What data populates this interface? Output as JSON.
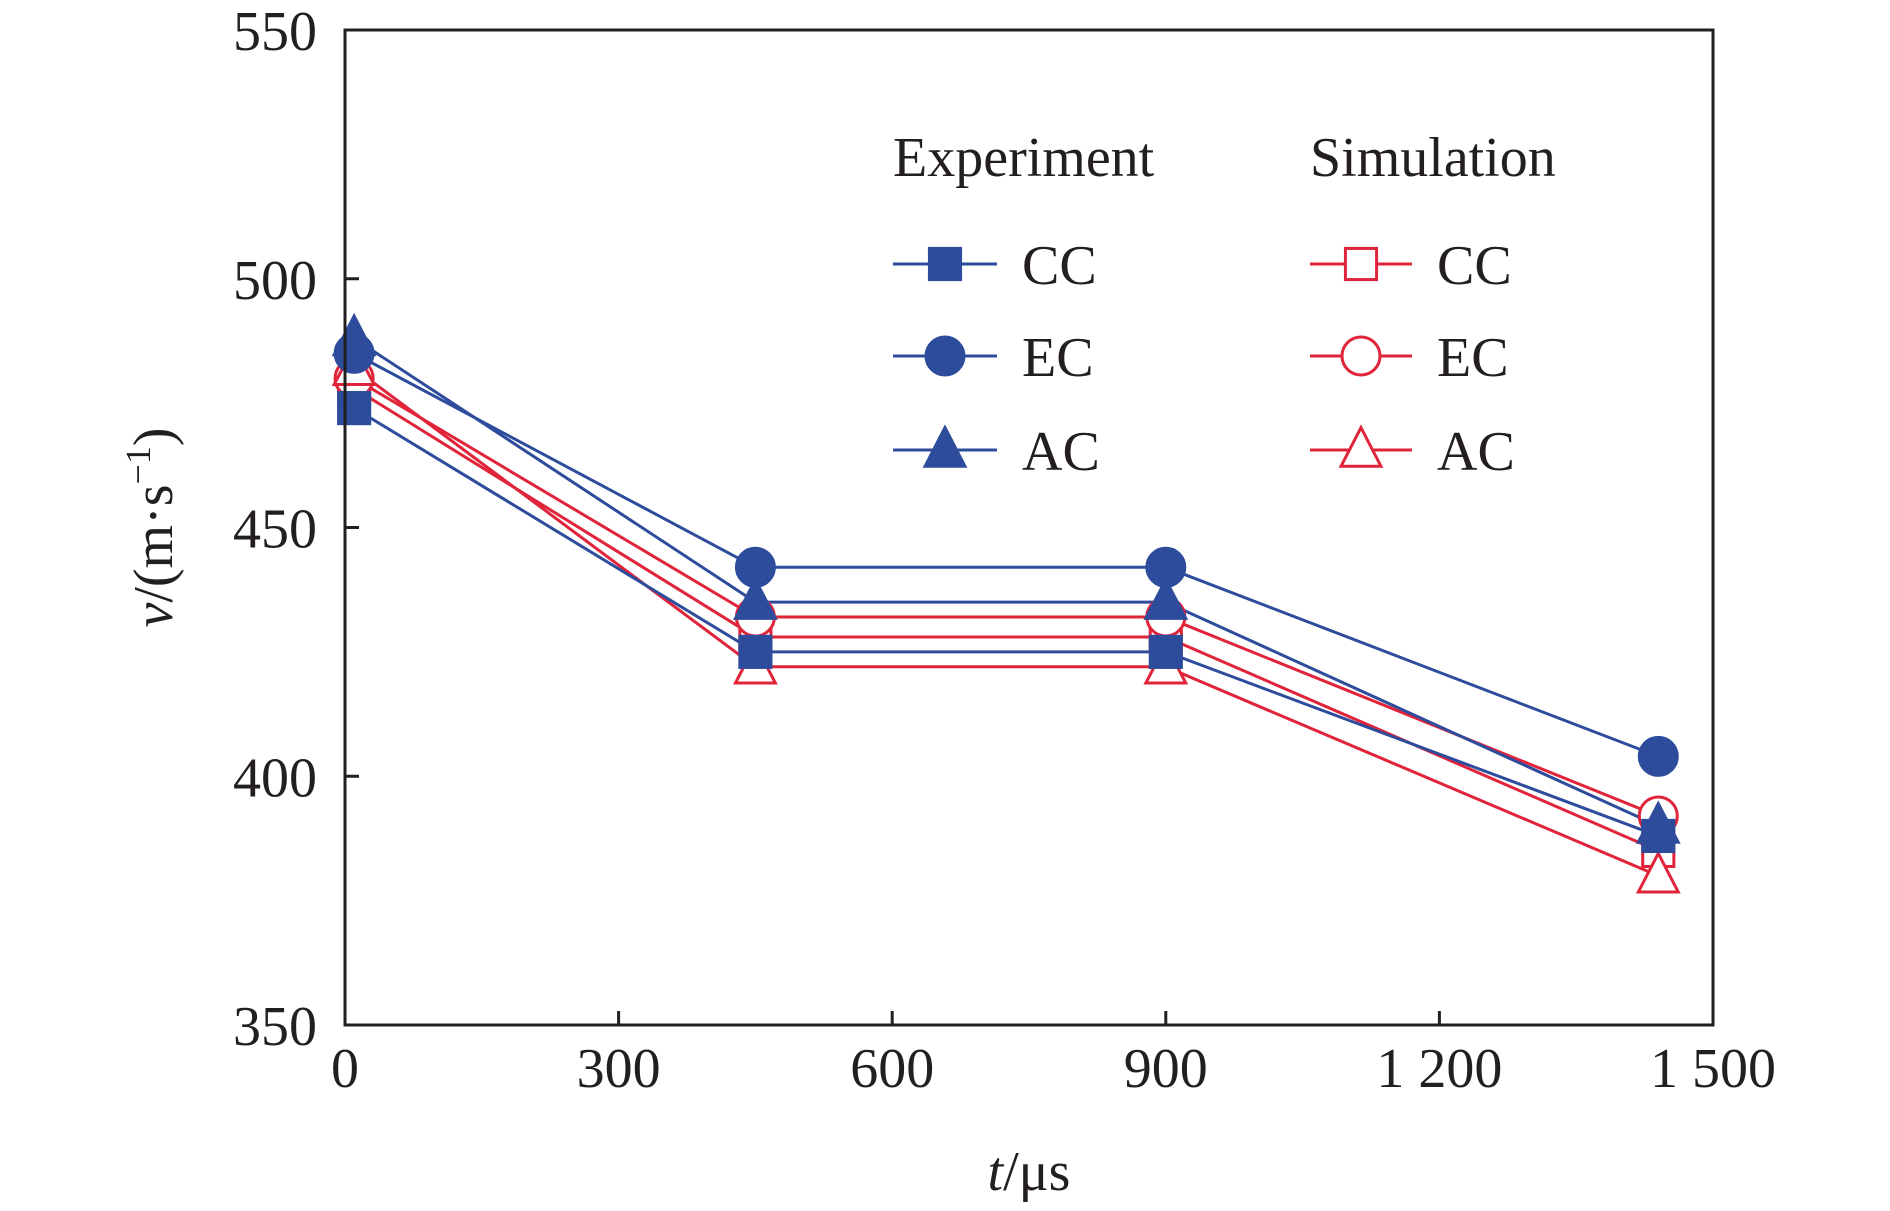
{
  "colors": {
    "experiment": "#2e4c9c",
    "simulation": "#e0243a",
    "axis": "#231f20"
  },
  "chart_data": {
    "type": "line",
    "xlabel": {
      "italic": "t",
      "rest": "/μs"
    },
    "ylabel": {
      "italic": "v",
      "rest": "/(m·s",
      "sup": "−1",
      "close": ")"
    },
    "xlim": [
      0,
      1500
    ],
    "ylim": [
      350,
      550
    ],
    "xticks": [
      0,
      300,
      600,
      900,
      1200,
      1500
    ],
    "xtick_labels": [
      "0",
      "300",
      "600",
      "900",
      "1 200",
      "1 500"
    ],
    "yticks": [
      350,
      400,
      450,
      500,
      550
    ],
    "ytick_labels": [
      "350",
      "400",
      "450",
      "500",
      "550"
    ],
    "grid": false,
    "legend": {
      "placement": "top-right",
      "group_titles": [
        "Experiment",
        "Simulation"
      ]
    },
    "x": [
      10,
      450,
      900,
      1440
    ],
    "series": [
      {
        "name": "CC",
        "group": "Experiment",
        "marker": "square",
        "filled": true,
        "values": [
          474,
          425,
          425,
          388
        ]
      },
      {
        "name": "EC",
        "group": "Experiment",
        "marker": "circle",
        "filled": true,
        "values": [
          485,
          442,
          442,
          404
        ]
      },
      {
        "name": "AC",
        "group": "Experiment",
        "marker": "triangle",
        "filled": true,
        "values": [
          488,
          435,
          435,
          390
        ]
      },
      {
        "name": "CC",
        "group": "Simulation",
        "marker": "square",
        "filled": false,
        "values": [
          478,
          428,
          428,
          385
        ]
      },
      {
        "name": "EC",
        "group": "Simulation",
        "marker": "circle",
        "filled": false,
        "values": [
          480,
          432,
          432,
          392
        ]
      },
      {
        "name": "AC",
        "group": "Simulation",
        "marker": "triangle",
        "filled": false,
        "values": [
          482,
          422,
          422,
          380
        ]
      }
    ]
  }
}
